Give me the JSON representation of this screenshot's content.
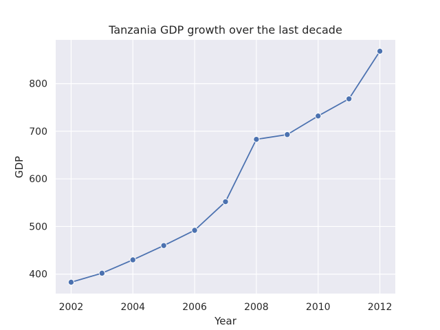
{
  "chart_data": {
    "type": "line",
    "title": "Tanzania GDP growth over the last decade",
    "xlabel": "Year",
    "ylabel": "GDP",
    "x": [
      2002,
      2003,
      2004,
      2005,
      2006,
      2007,
      2008,
      2009,
      2010,
      2011,
      2012
    ],
    "series": [
      {
        "values": [
          383,
          402,
          430,
          460,
          492,
          552,
          683,
          693,
          732,
          768,
          868
        ]
      }
    ],
    "xticks": [
      "2002",
      "2004",
      "2006",
      "2008",
      "2010",
      "2012"
    ],
    "yticks": [
      "400",
      "500",
      "600",
      "700",
      "800"
    ],
    "xlim": [
      2001.5,
      2012.5
    ],
    "ylim": [
      359.2,
      891.8
    ],
    "grid": true,
    "legend": "none",
    "colors": {
      "line": "#4c72b0",
      "marker_edge": "#ffffff",
      "plot_background": "#eaeaf2",
      "grid": "#ffffff",
      "text": "#262626"
    }
  }
}
